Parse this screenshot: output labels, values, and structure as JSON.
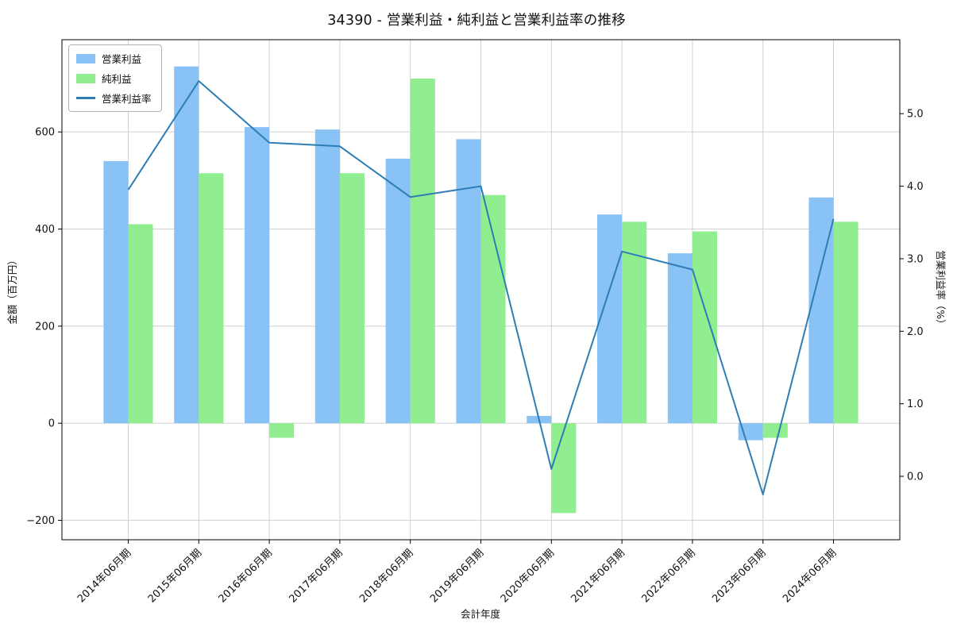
{
  "title": "34390 - 営業利益・純利益と営業利益率の推移",
  "colors": {
    "operating_bar": "#89C2F5",
    "net_bar": "#90EE90",
    "rate_line": "#2E7DB6",
    "grid": "#CCCCCC",
    "spine": "#000000"
  },
  "legend": {
    "items": [
      {
        "label": "営業利益",
        "type": "bar",
        "color": "#89C2F5"
      },
      {
        "label": "純利益",
        "type": "bar",
        "color": "#90EE90"
      },
      {
        "label": "営業利益率",
        "type": "line",
        "color": "#2E7DB6"
      }
    ]
  },
  "chart_data": {
    "type": "bar",
    "title": "34390 - 営業利益・純利益と営業利益率の推移",
    "xlabel": "会計年度",
    "ylabel_left": "金額（百万円）",
    "ylabel_right": "営業利益率（%）",
    "categories": [
      "2014年06月期",
      "2015年06月期",
      "2016年06月期",
      "2017年06月期",
      "2018年06月期",
      "2019年06月期",
      "2020年06月期",
      "2021年06月期",
      "2022年06月期",
      "2023年06月期",
      "2024年06月期"
    ],
    "series": [
      {
        "name": "営業利益",
        "type": "bar",
        "axis": "left",
        "color": "#89C2F5",
        "values": [
          540,
          735,
          610,
          605,
          545,
          585,
          15,
          430,
          350,
          -35,
          465
        ]
      },
      {
        "name": "純利益",
        "type": "bar",
        "axis": "left",
        "color": "#90EE90",
        "values": [
          410,
          515,
          -30,
          515,
          710,
          470,
          -185,
          415,
          395,
          -30,
          415
        ]
      },
      {
        "name": "営業利益率",
        "type": "line",
        "axis": "right",
        "color": "#2E7DB6",
        "values": [
          3.95,
          5.45,
          4.6,
          4.55,
          3.85,
          4.0,
          0.1,
          3.1,
          2.85,
          -0.25,
          3.55
        ]
      }
    ],
    "left_ticks": [
      {
        "v": -200,
        "label": "−200"
      },
      {
        "v": 0,
        "label": "0"
      },
      {
        "v": 200,
        "label": "200"
      },
      {
        "v": 400,
        "label": "400"
      },
      {
        "v": 600,
        "label": "600"
      }
    ],
    "right_ticks": [
      {
        "v": 0.0,
        "label": "0.0"
      },
      {
        "v": 1.0,
        "label": "1.0"
      },
      {
        "v": 2.0,
        "label": "2.0"
      },
      {
        "v": 3.0,
        "label": "3.0"
      },
      {
        "v": 4.0,
        "label": "4.0"
      },
      {
        "v": 5.0,
        "label": "5.0"
      }
    ],
    "layout": {
      "xlim": [
        -0.94,
        10.94
      ],
      "ylim_left": [
        -240,
        790
      ],
      "ylim_right": [
        -0.875,
        6.02
      ],
      "bar_width": 0.35,
      "grid": true,
      "legend_position": "upper left"
    }
  }
}
